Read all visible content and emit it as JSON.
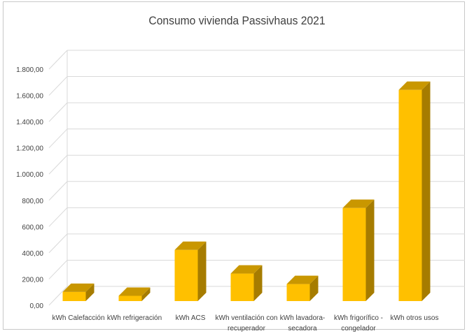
{
  "chart_data": {
    "type": "bar",
    "title": "Consumo vivienda Passivhaus 2021",
    "categories": [
      [
        "kWh Calefacción"
      ],
      [
        "kWh refrigeración"
      ],
      [
        "kWh ACS"
      ],
      [
        "kWh ventilación con",
        "recuperador"
      ],
      [
        "kWh lavadora-",
        "secadora"
      ],
      [
        "kWh frigorífico -",
        "congelador"
      ],
      [
        "kWh otros usos"
      ]
    ],
    "values": [
      70,
      40,
      390,
      210,
      130,
      710,
      1610
    ],
    "ylim": [
      0,
      1800
    ],
    "yticks": [
      "0,00",
      "200,00",
      "400,00",
      "600,00",
      "800,00",
      "1.000,00",
      "1.200,00",
      "1.400,00",
      "1.600,00",
      "1.800,00"
    ],
    "xlabel": "",
    "ylabel": "",
    "grid": true,
    "style": "3d-column",
    "colors": {
      "front": "#FFC000",
      "top": "#C99700",
      "side": "#A67C00",
      "grid": "#d9d9d9"
    }
  }
}
